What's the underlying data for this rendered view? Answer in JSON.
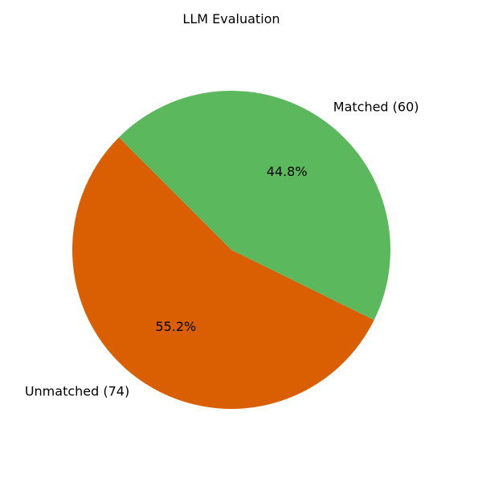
{
  "chart_data": {
    "type": "pie",
    "title": "LLM Evaluation",
    "slices": [
      {
        "label": "Unmatched (74)",
        "value": 74,
        "percent_label": "55.2%",
        "color": "#d95f02"
      },
      {
        "label": "Matched (60)",
        "value": 60,
        "percent_label": "44.8%",
        "color": "#5cb85c"
      }
    ],
    "start_angle_deg": 135,
    "direction": "counterclockwise"
  }
}
